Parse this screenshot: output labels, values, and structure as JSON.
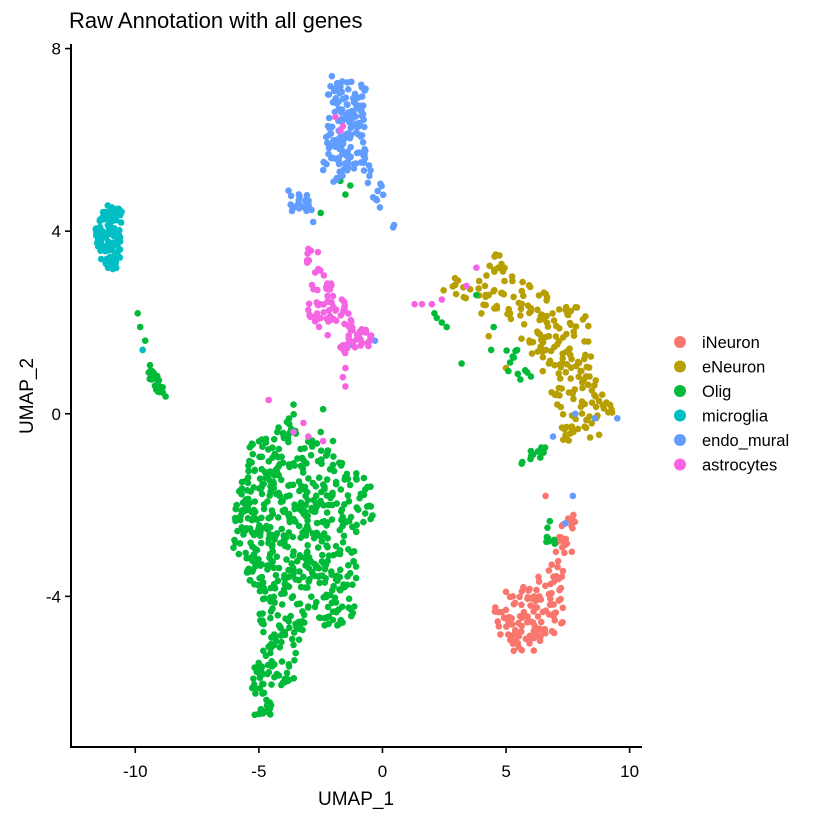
{
  "chart_data": {
    "type": "scatter",
    "title": "Raw Annotation with all genes",
    "xlabel": "UMAP_1",
    "ylabel": "UMAP_2",
    "xlim": [
      -12.6,
      10.5
    ],
    "ylim": [
      -7.3,
      8.1
    ],
    "x_ticks": [
      {
        "value": -10,
        "label": "-10"
      },
      {
        "value": -5,
        "label": "-5"
      },
      {
        "value": 0,
        "label": "0"
      },
      {
        "value": 5,
        "label": "5"
      },
      {
        "value": 10,
        "label": "10"
      }
    ],
    "y_ticks": [
      {
        "value": -4,
        "label": "-4"
      },
      {
        "value": 0,
        "label": "0"
      },
      {
        "value": 4,
        "label": "4"
      },
      {
        "value": 8,
        "label": "8"
      }
    ],
    "grid": false,
    "legend_position": "right",
    "series": [
      {
        "name": "iNeuron",
        "color": "#F8766D",
        "clusters": [
          {
            "poly": [
              [
                4.4,
                -4.2
              ],
              [
                5.2,
                -4.0
              ],
              [
                6.2,
                -3.6
              ],
              [
                6.8,
                -3.4
              ],
              [
                7.3,
                -3.6
              ],
              [
                7.3,
                -4.6
              ],
              [
                6.8,
                -5.0
              ],
              [
                6.2,
                -5.2
              ],
              [
                5.3,
                -5.2
              ],
              [
                4.6,
                -4.8
              ],
              [
                4.4,
                -4.5
              ]
            ],
            "n": 115
          },
          {
            "poly": [
              [
                6.8,
                -3.4
              ],
              [
                7.4,
                -2.1
              ],
              [
                7.9,
                -2.2
              ],
              [
                7.8,
                -2.9
              ],
              [
                7.3,
                -3.6
              ]
            ],
            "n": 25
          }
        ],
        "extra": [
          [
            6.6,
            -1.8
          ],
          [
            5.0,
            -3.9
          ],
          [
            5.7,
            -3.8
          ],
          [
            7.1,
            -2.8
          ]
        ]
      },
      {
        "name": "eNeuron",
        "color": "#B79F00",
        "clusters": [
          {
            "poly": [
              [
                2.4,
                2.8
              ],
              [
                3.0,
                3.0
              ],
              [
                4.0,
                3.0
              ],
              [
                4.6,
                3.6
              ],
              [
                5.3,
                3.2
              ],
              [
                6.2,
                2.8
              ],
              [
                7.0,
                2.6
              ],
              [
                7.8,
                2.4
              ],
              [
                8.3,
                2.1
              ],
              [
                8.5,
                1.4
              ],
              [
                8.6,
                0.8
              ],
              [
                9.2,
                0.3
              ],
              [
                9.5,
                -0.1
              ],
              [
                8.8,
                -0.5
              ],
              [
                8.0,
                -0.6
              ],
              [
                7.5,
                -0.5
              ],
              [
                7.2,
                0.0
              ],
              [
                6.9,
                0.4
              ],
              [
                6.5,
                0.9
              ],
              [
                6.0,
                1.3
              ],
              [
                5.3,
                1.6
              ],
              [
                4.7,
                1.8
              ],
              [
                4.0,
                2.2
              ],
              [
                3.3,
                2.4
              ],
              [
                2.6,
                2.5
              ]
            ],
            "n": 210
          },
          {
            "poly": [
              [
                7.2,
                -0.1
              ],
              [
                7.9,
                -0.4
              ],
              [
                7.8,
                -0.7
              ],
              [
                7.3,
                -0.6
              ]
            ],
            "n": 10
          }
        ],
        "extra": [
          [
            4.3,
            2.6
          ],
          [
            6.5,
            -0.8
          ],
          [
            5.0,
            1.0
          ],
          [
            4.3,
            1.7
          ]
        ]
      },
      {
        "name": "Olig",
        "color": "#00BA38",
        "clusters": [
          {
            "poly": [
              [
                -5.3,
                -0.6
              ],
              [
                -4.3,
                -0.4
              ],
              [
                -3.4,
                0.2
              ],
              [
                -3.0,
                -0.4
              ],
              [
                -2.2,
                -0.8
              ],
              [
                -1.6,
                -1.1
              ],
              [
                -1.0,
                -1.3
              ],
              [
                -0.4,
                -1.5
              ],
              [
                -0.4,
                -2.3
              ],
              [
                -1.0,
                -2.5
              ],
              [
                -1.0,
                -3.0
              ],
              [
                -1.1,
                -4.0
              ],
              [
                -1.2,
                -4.6
              ],
              [
                -1.9,
                -4.7
              ],
              [
                -2.6,
                -4.6
              ],
              [
                -3.0,
                -4.3
              ],
              [
                -3.2,
                -4.8
              ],
              [
                -3.5,
                -5.2
              ],
              [
                -3.4,
                -5.8
              ],
              [
                -4.3,
                -6.1
              ],
              [
                -4.5,
                -6.6
              ],
              [
                -5.2,
                -6.6
              ],
              [
                -5.4,
                -6.0
              ],
              [
                -5.2,
                -5.6
              ],
              [
                -5.1,
                -5.1
              ],
              [
                -5.0,
                -4.5
              ],
              [
                -5.0,
                -4.0
              ],
              [
                -5.7,
                -3.5
              ],
              [
                -6.2,
                -2.9
              ],
              [
                -6.0,
                -2.2
              ],
              [
                -5.8,
                -1.5
              ],
              [
                -5.5,
                -1.0
              ]
            ],
            "n": 640
          },
          {
            "poly": [
              [
                -9.4,
                1.1
              ],
              [
                -8.9,
                0.7
              ],
              [
                -8.7,
                0.2
              ],
              [
                -9.0,
                0.4
              ],
              [
                -9.5,
                0.8
              ]
            ],
            "n": 26
          },
          {
            "poly": [
              [
                5.5,
                -1.0
              ],
              [
                6.6,
                -0.5
              ],
              [
                6.6,
                -0.9
              ],
              [
                5.7,
                -1.2
              ]
            ],
            "n": 12
          },
          {
            "poly": [
              [
                4.8,
                1.5
              ],
              [
                5.8,
                1.4
              ],
              [
                6.2,
                0.8
              ],
              [
                5.6,
                0.6
              ],
              [
                5.0,
                0.9
              ]
            ],
            "n": 12
          },
          {
            "poly": [
              [
                6.5,
                -2.4
              ],
              [
                7.0,
                -2.3
              ],
              [
                7.1,
                -2.9
              ],
              [
                6.6,
                -2.8
              ]
            ],
            "n": 8
          }
        ],
        "extra": [
          [
            -9.9,
            2.2
          ],
          [
            -9.8,
            1.9
          ],
          [
            -9.6,
            1.6
          ],
          [
            -9.7,
            1.4
          ],
          [
            -2.5,
            4.4
          ],
          [
            -3.1,
            4.5
          ],
          [
            -3.4,
            4.6
          ],
          [
            -1.7,
            5.1
          ],
          [
            -1.3,
            5.0
          ],
          [
            -1.5,
            4.8
          ],
          [
            2.1,
            2.2
          ],
          [
            2.2,
            2.1
          ],
          [
            2.4,
            2.0
          ],
          [
            2.6,
            1.9
          ],
          [
            3.2,
            1.1
          ],
          [
            4.4,
            1.4
          ],
          [
            4.5,
            1.9
          ],
          [
            3.8,
            2.6
          ],
          [
            -2.5,
            -0.4
          ],
          [
            -2.4,
            0.1
          ],
          [
            -2.0,
            -0.6
          ],
          [
            -3.6,
            0.2
          ],
          [
            -4.2,
            -0.3
          ]
        ]
      },
      {
        "name": "microglia",
        "color": "#00BFC4",
        "clusters": [
          {
            "poly": [
              [
                -11.6,
                4.1
              ],
              [
                -11.2,
                4.6
              ],
              [
                -10.8,
                4.6
              ],
              [
                -10.4,
                4.5
              ],
              [
                -10.6,
                4.0
              ],
              [
                -10.6,
                3.5
              ],
              [
                -10.7,
                3.1
              ],
              [
                -11.0,
                3.1
              ],
              [
                -11.4,
                3.4
              ],
              [
                -11.6,
                3.7
              ]
            ],
            "n": 115
          }
        ],
        "extra": [
          [
            -9.7,
            1.4
          ]
        ]
      },
      {
        "name": "endo_mural",
        "color": "#619CFF",
        "clusters": [
          {
            "poly": [
              [
                -2.2,
                7.4
              ],
              [
                -1.4,
                7.4
              ],
              [
                -0.5,
                7.1
              ],
              [
                -0.7,
                6.6
              ],
              [
                -0.7,
                5.9
              ],
              [
                -0.4,
                5.4
              ],
              [
                0.0,
                5.0
              ],
              [
                0.4,
                4.4
              ],
              [
                0.7,
                3.9
              ],
              [
                0.4,
                3.9
              ],
              [
                -0.2,
                4.6
              ],
              [
                -0.6,
                4.9
              ],
              [
                -0.8,
                5.4
              ],
              [
                -1.4,
                5.3
              ],
              [
                -2.1,
                5.0
              ],
              [
                -2.5,
                5.4
              ],
              [
                -2.3,
                6.0
              ],
              [
                -2.2,
                6.7
              ]
            ],
            "n": 175
          },
          {
            "poly": [
              [
                -3.8,
                4.9
              ],
              [
                -3.0,
                4.8
              ],
              [
                -2.8,
                4.4
              ],
              [
                -3.7,
                4.4
              ]
            ],
            "n": 22
          }
        ],
        "extra": [
          [
            -2.0,
            5.6
          ],
          [
            -2.8,
            4.2
          ],
          [
            -1.2,
            1.5
          ],
          [
            6.9,
            -0.5
          ],
          [
            7.8,
            0.0
          ],
          [
            9.5,
            -0.1
          ],
          [
            7.4,
            -2.4
          ],
          [
            7.7,
            -1.8
          ],
          [
            8.6,
            -0.1
          ],
          [
            -0.3,
            1.6
          ]
        ]
      },
      {
        "name": "astrocytes",
        "color": "#F564E3",
        "clusters": [
          {
            "poly": [
              [
                -3.2,
                2.8
              ],
              [
                -2.6,
                3.2
              ],
              [
                -1.8,
                2.7
              ],
              [
                -1.2,
                2.1
              ],
              [
                -0.4,
                1.7
              ],
              [
                -0.5,
                1.4
              ],
              [
                -1.5,
                1.3
              ],
              [
                -2.0,
                1.6
              ],
              [
                -2.6,
                1.9
              ],
              [
                -3.2,
                2.3
              ]
            ],
            "n": 92
          },
          {
            "poly": [
              [
                -3.0,
                3.8
              ],
              [
                -2.5,
                3.5
              ],
              [
                -2.7,
                3.1
              ],
              [
                -3.1,
                3.2
              ]
            ],
            "n": 8
          }
        ],
        "extra": [
          [
            -1.7,
            6.2
          ],
          [
            -1.9,
            6.5
          ],
          [
            -1.6,
            6.3
          ],
          [
            -1.5,
            1.0
          ],
          [
            -1.6,
            0.8
          ],
          [
            -1.5,
            0.6
          ],
          [
            2.4,
            2.5
          ],
          [
            1.3,
            2.4
          ],
          [
            1.6,
            2.4
          ],
          [
            2.0,
            2.4
          ],
          [
            3.8,
            3.2
          ],
          [
            3.4,
            2.8
          ],
          [
            -3.0,
            -0.5
          ],
          [
            -3.2,
            -0.2
          ],
          [
            -3.6,
            -0.4
          ],
          [
            -2.4,
            -0.6
          ],
          [
            -4.6,
            0.3
          ]
        ]
      }
    ]
  }
}
